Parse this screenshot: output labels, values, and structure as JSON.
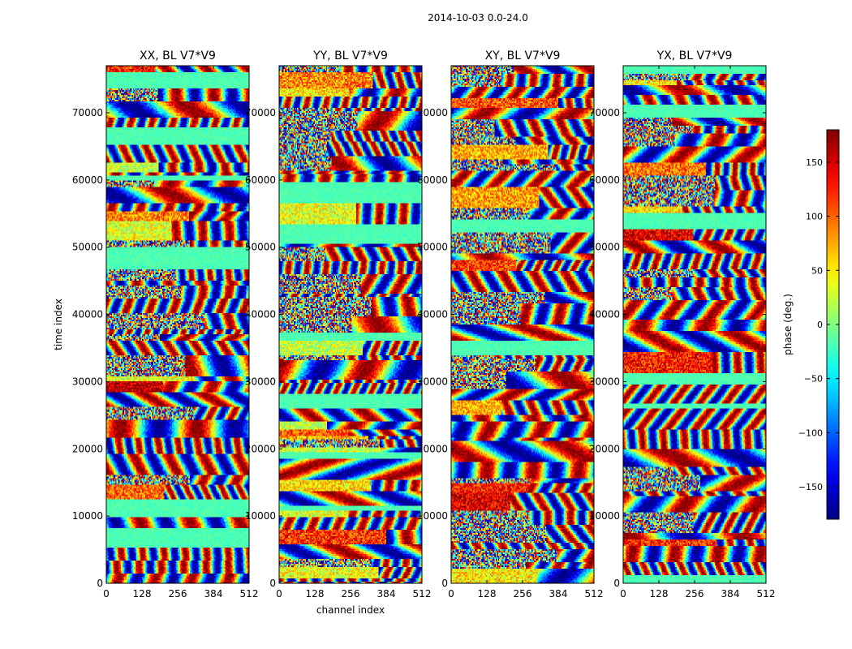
{
  "figure": {
    "suptitle": "2014-10-03 0.0-24.0"
  },
  "chart_data": [
    {
      "type": "heatmap",
      "title": "XX, BL V7*V9",
      "xlabel": "",
      "ylabel": "time index",
      "xlim": [
        0,
        512
      ],
      "ylim": [
        0,
        77000
      ],
      "xticks": [
        0,
        128,
        256,
        384,
        512
      ],
      "yticks": [
        0,
        10000,
        20000,
        30000,
        40000,
        50000,
        60000,
        70000
      ],
      "seed": 11
    },
    {
      "type": "heatmap",
      "title": "YY, BL V7*V9",
      "xlabel": "channel index",
      "ylabel": "",
      "xlim": [
        0,
        512
      ],
      "ylim": [
        0,
        77000
      ],
      "xticks": [
        0,
        128,
        256,
        384,
        512
      ],
      "yticks": [
        0,
        10000,
        20000,
        30000,
        40000,
        50000,
        60000,
        70000
      ],
      "seed": 23
    },
    {
      "type": "heatmap",
      "title": "XY, BL V7*V9",
      "xlabel": "",
      "ylabel": "",
      "xlim": [
        0,
        512
      ],
      "ylim": [
        0,
        77000
      ],
      "xticks": [
        0,
        128,
        256,
        384,
        512
      ],
      "yticks": [
        0,
        10000,
        20000,
        30000,
        40000,
        50000,
        60000,
        70000
      ],
      "seed": 37
    },
    {
      "type": "heatmap",
      "title": "YX, BL V7*V9",
      "xlabel": "",
      "ylabel": "",
      "xlim": [
        0,
        512
      ],
      "ylim": [
        0,
        77000
      ],
      "xticks": [
        0,
        128,
        256,
        384,
        512
      ],
      "yticks": [
        0,
        10000,
        20000,
        30000,
        40000,
        50000,
        60000,
        70000
      ],
      "seed": 53
    }
  ],
  "colorbar": {
    "label": "phase (deg.)",
    "range": [
      -180,
      180
    ],
    "ticks": [
      -150,
      -100,
      -50,
      0,
      50,
      100,
      150
    ],
    "colormap": "jet"
  }
}
